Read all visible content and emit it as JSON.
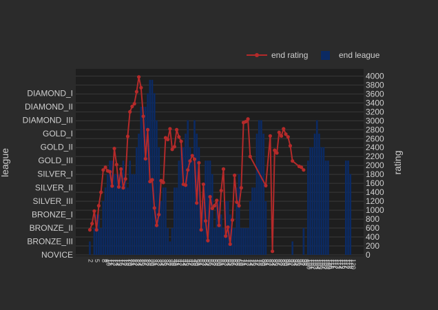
{
  "chart_data": {
    "type": "bar+line",
    "title": "",
    "y_left": {
      "label": "league",
      "categories": [
        "NOVICE",
        "BRONZE_III",
        "BRONZE_II",
        "BRONZE_I",
        "SILVER_III",
        "SILVER_II",
        "SILVER_I",
        "GOLD_III",
        "GOLD_II",
        "GOLD_I",
        "DIAMOND_III",
        "DIAMOND_II",
        "DIAMOND_I"
      ]
    },
    "y_right": {
      "label": "rating",
      "range": [
        0,
        4100
      ],
      "ticks": [
        0,
        200,
        400,
        600,
        800,
        1000,
        1200,
        1400,
        1600,
        1800,
        2000,
        2200,
        2400,
        2600,
        2800,
        3000,
        3200,
        3400,
        3600,
        3800,
        4000
      ]
    },
    "x": {
      "tick_labels": [
        "2",
        "5",
        "8",
        "9",
        "10",
        "11",
        "12",
        "13",
        "14",
        "15",
        "16",
        "17",
        "18",
        "19",
        "20",
        "21",
        "22",
        "23",
        "24",
        "25",
        "26",
        "27",
        "28",
        "29",
        "30",
        "31",
        "32",
        "33",
        "34",
        "35",
        "36",
        "37",
        "38",
        "39",
        "40",
        "41",
        "42",
        "43",
        "44",
        "45",
        "46",
        "47",
        "48",
        "49",
        "50",
        "51",
        "52",
        "53",
        "54",
        "55",
        "56",
        "57",
        "58",
        "59",
        "60",
        "61",
        "62",
        "63",
        "64",
        "65",
        "66",
        "67",
        "68",
        "69",
        "70",
        "71",
        "72",
        "73",
        "74",
        "75",
        "76",
        "77",
        "78",
        "79",
        "80",
        "81",
        "82",
        "83",
        "84",
        "85",
        "86",
        "87",
        "88",
        "89",
        "90",
        "91",
        "92",
        "93",
        "94",
        "95",
        "96",
        "97",
        "98",
        "99",
        "100",
        "101",
        "102",
        "103",
        "104",
        "105",
        "106",
        "107",
        "108",
        "109",
        "110",
        "111",
        "112",
        "113",
        "114",
        "115",
        "116",
        "117",
        "118",
        "119",
        "120",
        "121",
        "122",
        "123",
        "124",
        "125",
        "126",
        "127",
        "128",
        "129",
        "130",
        "131",
        "132",
        "133",
        "134",
        "135",
        "136",
        "137",
        "138",
        "139",
        "140",
        "141",
        "142",
        "143",
        "144",
        "145",
        "146",
        "147",
        "148",
        "149",
        "150",
        "151",
        "152",
        "153",
        "154",
        "155",
        "156",
        "157",
        "158",
        "159",
        "160",
        "161",
        "162",
        "163",
        "164",
        "165",
        "166",
        "167",
        "168"
      ],
      "range": [
        0,
        170
      ]
    },
    "series": [
      {
        "name": "end league",
        "kind": "bar",
        "color": "#0b2a63",
        "points": [
          [
            2,
            1
          ],
          [
            4,
            2
          ],
          [
            5,
            3
          ],
          [
            6,
            3
          ],
          [
            7,
            2
          ],
          [
            8,
            4
          ],
          [
            9,
            5
          ],
          [
            10,
            6
          ],
          [
            11,
            7
          ],
          [
            12,
            7
          ],
          [
            13,
            6
          ],
          [
            14,
            6
          ],
          [
            15,
            6
          ],
          [
            16,
            6
          ],
          [
            17,
            7
          ],
          [
            18,
            6
          ],
          [
            19,
            5
          ],
          [
            20,
            7
          ],
          [
            21,
            6
          ],
          [
            22,
            6
          ],
          [
            23,
            8
          ],
          [
            24,
            9
          ],
          [
            25,
            11
          ],
          [
            26,
            11
          ],
          [
            27,
            11
          ],
          [
            28,
            12
          ],
          [
            29,
            13
          ],
          [
            30,
            13
          ],
          [
            31,
            12
          ],
          [
            32,
            10
          ],
          [
            33,
            8
          ],
          [
            34,
            4
          ],
          [
            35,
            5
          ],
          [
            36,
            5
          ],
          [
            37,
            2
          ],
          [
            38,
            1
          ],
          [
            39,
            2
          ],
          [
            40,
            5
          ],
          [
            41,
            5
          ],
          [
            42,
            7
          ],
          [
            43,
            8
          ],
          [
            44,
            8
          ],
          [
            45,
            9
          ],
          [
            46,
            10
          ],
          [
            47,
            8
          ],
          [
            48,
            7
          ],
          [
            49,
            10
          ],
          [
            50,
            9
          ],
          [
            51,
            8
          ],
          [
            52,
            3
          ],
          [
            53,
            4
          ],
          [
            54,
            7
          ],
          [
            55,
            7
          ],
          [
            56,
            7
          ],
          [
            57,
            6
          ],
          [
            58,
            2
          ],
          [
            59,
            4
          ],
          [
            60,
            4
          ],
          [
            61,
            3
          ],
          [
            62,
            2
          ],
          [
            63,
            4
          ],
          [
            64,
            4
          ],
          [
            65,
            3
          ],
          [
            66,
            2
          ],
          [
            67,
            2
          ],
          [
            68,
            5
          ],
          [
            69,
            6
          ],
          [
            70,
            2
          ],
          [
            71,
            2
          ],
          [
            72,
            2
          ],
          [
            73,
            2
          ],
          [
            74,
            4
          ],
          [
            75,
            5
          ],
          [
            76,
            5
          ],
          [
            77,
            9
          ],
          [
            78,
            10
          ],
          [
            79,
            10
          ],
          [
            80,
            9
          ],
          [
            81,
            4
          ],
          [
            93,
            1
          ],
          [
            98,
            2
          ],
          [
            100,
            7
          ],
          [
            101,
            8
          ],
          [
            102,
            8
          ],
          [
            103,
            9
          ],
          [
            104,
            10
          ],
          [
            105,
            9
          ],
          [
            106,
            8
          ],
          [
            107,
            8
          ],
          [
            108,
            7
          ],
          [
            109,
            7
          ],
          [
            117,
            7
          ],
          [
            118,
            7
          ],
          [
            119,
            6
          ]
        ]
      },
      {
        "name": "end rating",
        "kind": "line",
        "color": "#b52a2a",
        "points": [
          [
            2,
            560
          ],
          [
            3,
            700
          ],
          [
            4,
            980
          ],
          [
            5,
            560
          ],
          [
            6,
            1100
          ],
          [
            7,
            1400
          ],
          [
            8,
            1900
          ],
          [
            9,
            1960
          ],
          [
            10,
            1880
          ],
          [
            11,
            1860
          ],
          [
            12,
            1540
          ],
          [
            13,
            2380
          ],
          [
            14,
            2020
          ],
          [
            15,
            1520
          ],
          [
            16,
            1920
          ],
          [
            17,
            1500
          ],
          [
            18,
            1700
          ],
          [
            19,
            2650
          ],
          [
            20,
            3200
          ],
          [
            21,
            3320
          ],
          [
            22,
            3380
          ],
          [
            23,
            3650
          ],
          [
            24,
            3980
          ],
          [
            25,
            3740
          ],
          [
            26,
            3100
          ],
          [
            27,
            2150
          ],
          [
            28,
            2800
          ],
          [
            29,
            1640
          ],
          [
            30,
            1680
          ],
          [
            31,
            1050
          ],
          [
            32,
            660
          ],
          [
            33,
            900
          ],
          [
            34,
            1660
          ],
          [
            35,
            1620
          ],
          [
            36,
            2620
          ],
          [
            37,
            2580
          ],
          [
            38,
            2820
          ],
          [
            39,
            2360
          ],
          [
            40,
            2420
          ],
          [
            41,
            2800
          ],
          [
            42,
            2640
          ],
          [
            43,
            2540
          ],
          [
            44,
            1580
          ],
          [
            45,
            1560
          ],
          [
            46,
            1900
          ],
          [
            47,
            2100
          ],
          [
            48,
            2220
          ],
          [
            49,
            2140
          ],
          [
            50,
            1160
          ],
          [
            51,
            2060
          ],
          [
            52,
            560
          ],
          [
            53,
            1580
          ],
          [
            54,
            760
          ],
          [
            55,
            320
          ],
          [
            56,
            1300
          ],
          [
            57,
            1040
          ],
          [
            58,
            1100
          ],
          [
            59,
            1220
          ],
          [
            60,
            660
          ],
          [
            61,
            1440
          ],
          [
            62,
            1920
          ],
          [
            63,
            420
          ],
          [
            64,
            620
          ],
          [
            65,
            240
          ],
          [
            66,
            780
          ],
          [
            67,
            1780
          ],
          [
            68,
            1180
          ],
          [
            69,
            1100
          ],
          [
            70,
            1500
          ],
          [
            71,
            2960
          ],
          [
            72,
            2980
          ],
          [
            73,
            3040
          ],
          [
            74,
            2200
          ],
          [
            81,
            1550
          ],
          [
            83,
            2660
          ],
          [
            84,
            80
          ],
          [
            85,
            2340
          ],
          [
            86,
            2280
          ],
          [
            87,
            2740
          ],
          [
            88,
            2660
          ],
          [
            89,
            2820
          ],
          [
            90,
            2700
          ],
          [
            91,
            2640
          ],
          [
            92,
            2440
          ],
          [
            93,
            2100
          ],
          [
            96,
            1980
          ],
          [
            97,
            1960
          ],
          [
            98,
            1900
          ]
        ]
      }
    ],
    "legend": {
      "position": "top-right",
      "entries": [
        "end rating",
        "end league"
      ]
    },
    "grid": true
  }
}
